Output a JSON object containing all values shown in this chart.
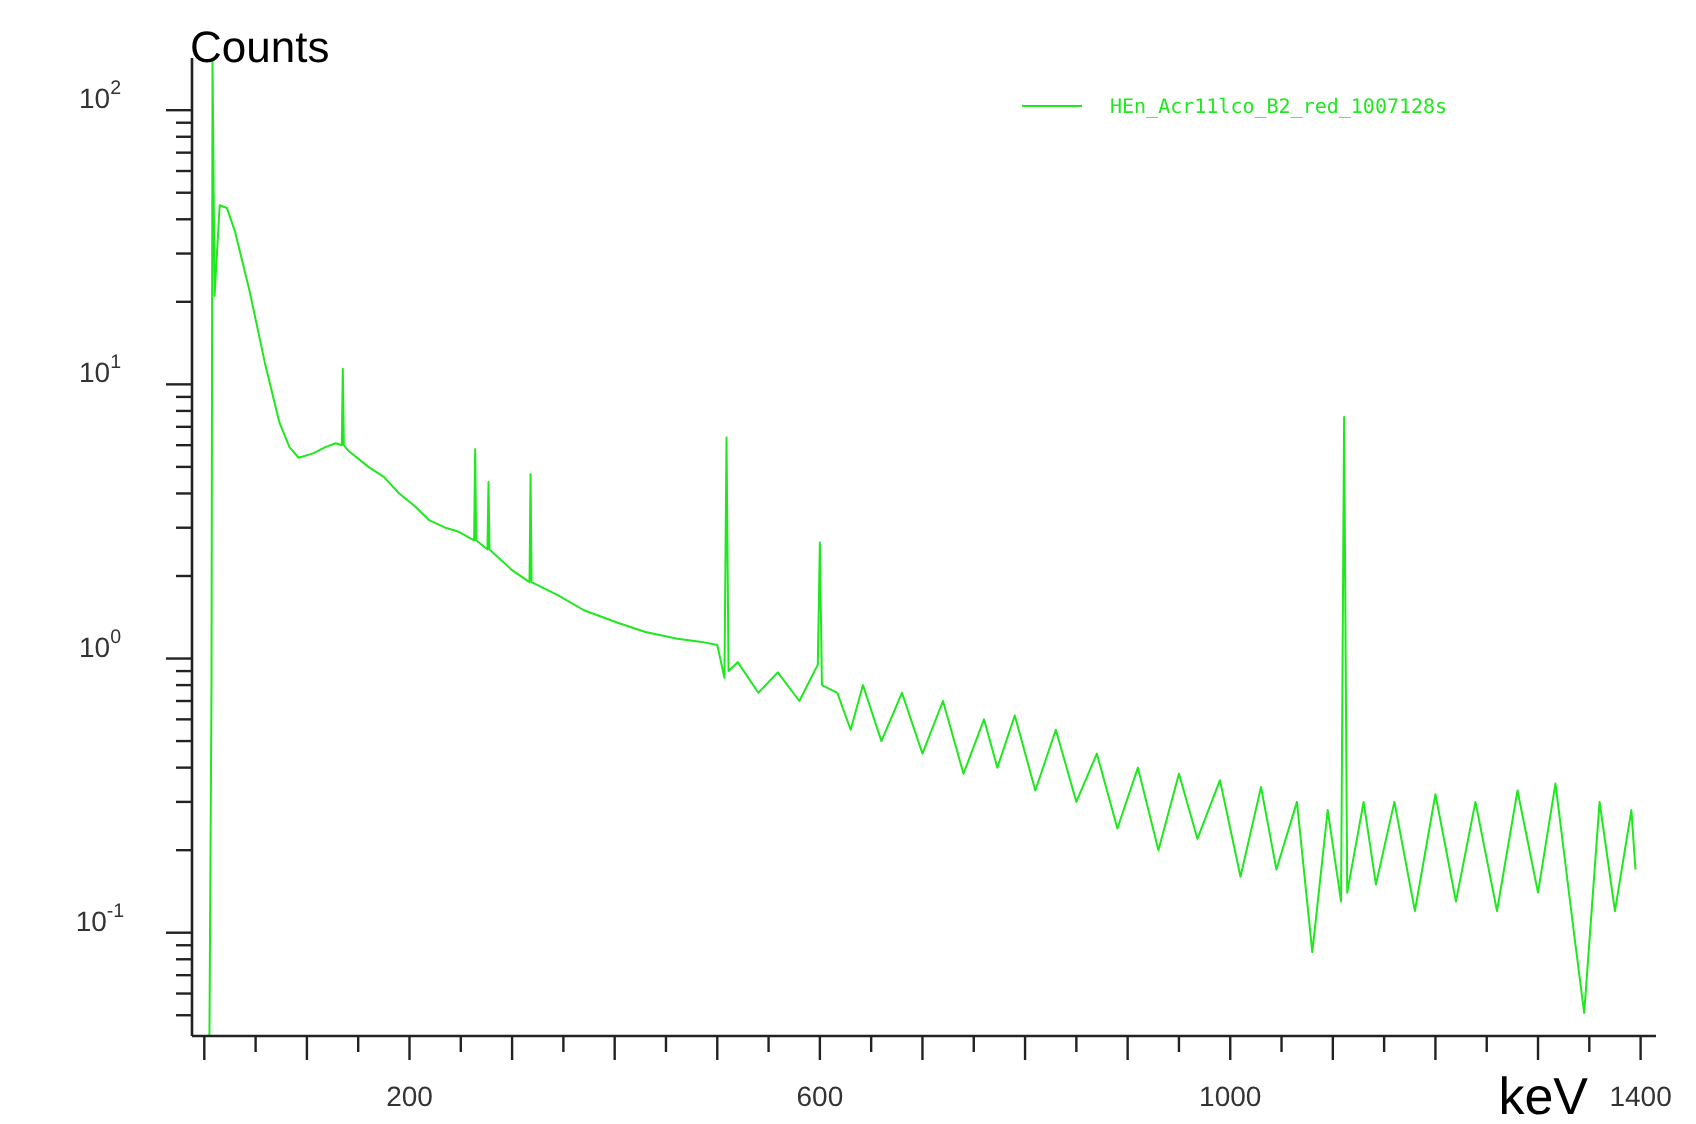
{
  "chart_data": {
    "type": "line",
    "xlabel": "keV",
    "ylabel": "Counts",
    "log": "y",
    "legend": "top right",
    "grid": false,
    "marker": "none",
    "line_style": "solid",
    "xlim": [
      -12,
      1415
    ],
    "ylim": [
      0.042,
      155
    ],
    "xticks": [
      {
        "value": 0,
        "label": null
      },
      {
        "value": 50,
        "label": null
      },
      {
        "value": 100,
        "label": null
      },
      {
        "value": 150,
        "label": null
      },
      200,
      {
        "value": 250,
        "label": null
      },
      {
        "value": 300,
        "label": null
      },
      {
        "value": 350,
        "label": null
      },
      {
        "value": 400,
        "label": null
      },
      {
        "value": 450,
        "label": null
      },
      {
        "value": 500,
        "label": null
      },
      {
        "value": 550,
        "label": null
      },
      600,
      {
        "value": 650,
        "label": null
      },
      {
        "value": 700,
        "label": null
      },
      {
        "value": 750,
        "label": null
      },
      {
        "value": 800,
        "label": null
      },
      {
        "value": 850,
        "label": null
      },
      {
        "value": 900,
        "label": null
      },
      {
        "value": 950,
        "label": null
      },
      1000,
      {
        "value": 1050,
        "label": null
      },
      {
        "value": 1100,
        "label": null
      },
      {
        "value": 1150,
        "label": null
      },
      {
        "value": 1200,
        "label": null
      },
      {
        "value": 1250,
        "label": null
      },
      {
        "value": 1300,
        "label": null
      },
      {
        "value": 1350,
        "label": null
      },
      1400
    ],
    "yticks": [
      {
        "value": 0.05,
        "label": null
      },
      {
        "value": 0.06,
        "label": null
      },
      {
        "value": 0.07,
        "label": null
      },
      {
        "value": 0.08,
        "label": null
      },
      {
        "value": 0.09,
        "label": null
      },
      {
        "value": 0.1,
        "label": "10$^{-1}$"
      },
      {
        "value": 0.2,
        "label": null
      },
      {
        "value": 0.3,
        "label": null
      },
      {
        "value": 0.4,
        "label": null
      },
      {
        "value": 0.5,
        "label": null
      },
      {
        "value": 0.6,
        "label": null
      },
      {
        "value": 0.7,
        "label": null
      },
      {
        "value": 0.8,
        "label": null
      },
      {
        "value": 0.9,
        "label": null
      },
      {
        "value": 1,
        "label": "10$^{0}$"
      },
      {
        "value": 2,
        "label": null
      },
      {
        "value": 3,
        "label": null
      },
      {
        "value": 4,
        "label": null
      },
      {
        "value": 5,
        "label": null
      },
      {
        "value": 6,
        "label": null
      },
      {
        "value": 7,
        "label": null
      },
      {
        "value": 8,
        "label": null
      },
      {
        "value": 9,
        "label": null
      },
      {
        "value": 10,
        "label": "10$^{1}$"
      },
      {
        "value": 20,
        "label": null
      },
      {
        "value": 30,
        "label": null
      },
      {
        "value": 40,
        "label": null
      },
      {
        "value": 50,
        "label": null
      },
      {
        "value": 60,
        "label": null
      },
      {
        "value": 70,
        "label": null
      },
      {
        "value": 80,
        "label": null
      },
      {
        "value": 90,
        "label": null
      },
      {
        "value": 100,
        "label": "10$^{2}$"
      }
    ],
    "series": [
      {
        "name": "HEn_Acr11lco_B2_red_1007128s",
        "color": "#1fe81f",
        "x": [
          5,
          7,
          8,
          10,
          15,
          22,
          30,
          44,
          59,
          73,
          83,
          92,
          106,
          118,
          128,
          134,
          135,
          136,
          141,
          160,
          175,
          190,
          205,
          219,
          235,
          248,
          263,
          264,
          265,
          276,
          277,
          278,
          300,
          317,
          318,
          319,
          345,
          370,
          403,
          430,
          461,
          485,
          500,
          507,
          509,
          511,
          520,
          540,
          559,
          580,
          598,
          600,
          602,
          617,
          630,
          642,
          660,
          680,
          700,
          720,
          740,
          760,
          773,
          790,
          810,
          830,
          850,
          870,
          890,
          910,
          930,
          950,
          968,
          990,
          1010,
          1030,
          1045,
          1065,
          1080,
          1095,
          1108,
          1111,
          1114,
          1130,
          1142,
          1160,
          1180,
          1200,
          1220,
          1239,
          1260,
          1280,
          1300,
          1317,
          1335,
          1345,
          1360,
          1375,
          1391,
          1395
        ],
        "values": [
          0.042,
          0.8,
          150,
          21,
          45,
          44,
          36,
          22,
          12,
          7.3,
          5.9,
          5.4,
          5.6,
          5.9,
          6.1,
          6.0,
          11.4,
          6.0,
          5.7,
          5.0,
          4.6,
          4.0,
          3.6,
          3.2,
          3.0,
          2.9,
          2.7,
          5.8,
          2.7,
          2.5,
          4.4,
          2.5,
          2.1,
          1.9,
          4.7,
          1.9,
          1.7,
          1.5,
          1.35,
          1.25,
          1.18,
          1.15,
          1.12,
          0.85,
          6.4,
          0.9,
          0.97,
          0.75,
          0.89,
          0.7,
          0.95,
          2.65,
          0.8,
          0.75,
          0.55,
          0.8,
          0.5,
          0.75,
          0.45,
          0.7,
          0.38,
          0.6,
          0.4,
          0.62,
          0.33,
          0.55,
          0.3,
          0.45,
          0.24,
          0.4,
          0.2,
          0.38,
          0.22,
          0.36,
          0.16,
          0.34,
          0.17,
          0.3,
          0.085,
          0.28,
          0.13,
          7.6,
          0.14,
          0.3,
          0.15,
          0.3,
          0.12,
          0.32,
          0.13,
          0.3,
          0.12,
          0.33,
          0.14,
          0.35,
          0.1,
          0.051,
          0.3,
          0.12,
          0.28,
          0.17
        ]
      }
    ]
  }
}
